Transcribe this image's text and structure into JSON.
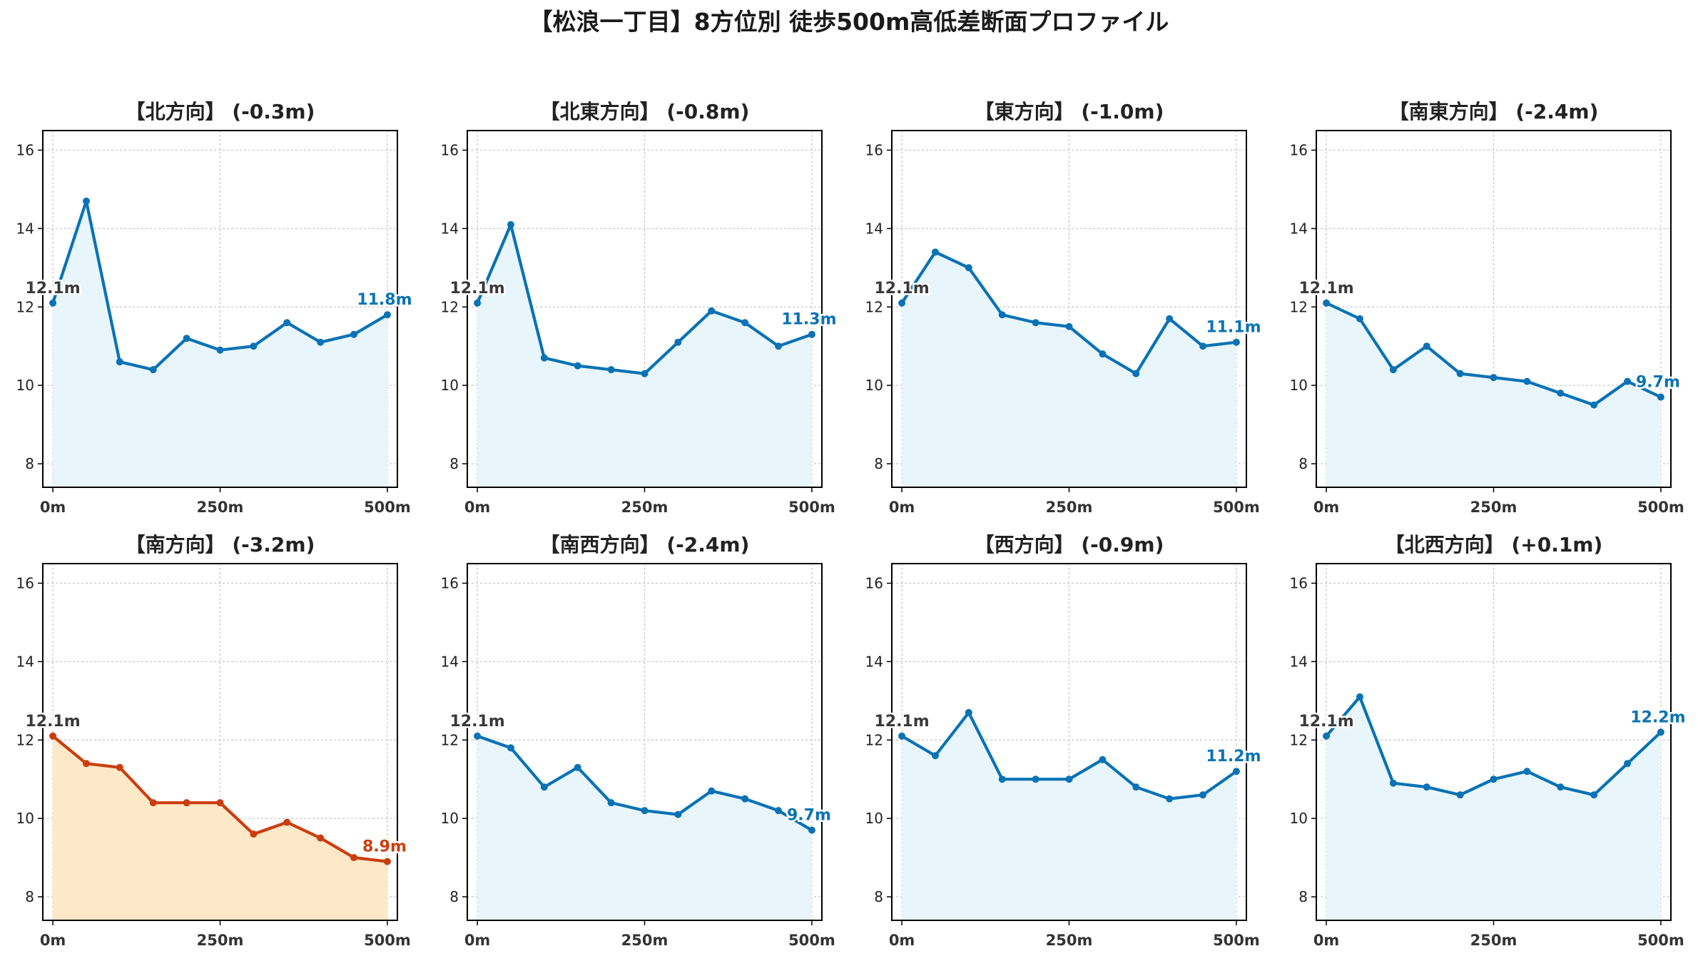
{
  "title": "【松浪一丁目】8方位別 徒歩500m高低差断面プロファイル",
  "colors": {
    "normal_line": "#0a72b5",
    "normal_fill": "#e8f6fb",
    "highlight_line": "#cc3d0e",
    "highlight_fill": "#fde8c8",
    "start_label": "#3a3a3a",
    "grid": "#c8c8c8"
  },
  "chart_data": [
    {
      "type": "line",
      "title": "【北方向】 (-0.3m)",
      "highlight": false,
      "x": [
        0,
        50,
        100,
        150,
        200,
        250,
        300,
        350,
        400,
        450,
        500
      ],
      "y": [
        12.1,
        14.7,
        10.6,
        10.4,
        11.2,
        10.9,
        11.0,
        11.6,
        11.1,
        11.3,
        11.8
      ],
      "start_label": "12.1m",
      "end_label": "11.8m",
      "xticks": [
        "0m",
        "250m",
        "500m"
      ],
      "yticks": [
        "8",
        "10",
        "12",
        "14",
        "16"
      ],
      "xlim": [
        -15,
        515
      ],
      "ylim": [
        7.4,
        16.5
      ],
      "grid": true
    },
    {
      "type": "line",
      "title": "【北東方向】 (-0.8m)",
      "highlight": false,
      "x": [
        0,
        50,
        100,
        150,
        200,
        250,
        300,
        350,
        400,
        450,
        500
      ],
      "y": [
        12.1,
        14.1,
        10.7,
        10.5,
        10.4,
        10.3,
        11.1,
        11.9,
        11.6,
        11.0,
        11.3
      ],
      "start_label": "12.1m",
      "end_label": "11.3m",
      "xticks": [
        "0m",
        "250m",
        "500m"
      ],
      "yticks": [
        "8",
        "10",
        "12",
        "14",
        "16"
      ],
      "xlim": [
        -15,
        515
      ],
      "ylim": [
        7.4,
        16.5
      ],
      "grid": true
    },
    {
      "type": "line",
      "title": "【東方向】 (-1.0m)",
      "highlight": false,
      "x": [
        0,
        50,
        100,
        150,
        200,
        250,
        300,
        350,
        400,
        450,
        500
      ],
      "y": [
        12.1,
        13.4,
        13.0,
        11.8,
        11.6,
        11.5,
        10.8,
        10.3,
        11.7,
        11.0,
        11.1
      ],
      "start_label": "12.1m",
      "end_label": "11.1m",
      "xticks": [
        "0m",
        "250m",
        "500m"
      ],
      "yticks": [
        "8",
        "10",
        "12",
        "14",
        "16"
      ],
      "xlim": [
        -15,
        515
      ],
      "ylim": [
        7.4,
        16.5
      ],
      "grid": true
    },
    {
      "type": "line",
      "title": "【南東方向】 (-2.4m)",
      "highlight": false,
      "x": [
        0,
        50,
        100,
        150,
        200,
        250,
        300,
        350,
        400,
        450,
        500
      ],
      "y": [
        12.1,
        11.7,
        10.4,
        11.0,
        10.3,
        10.2,
        10.1,
        9.8,
        9.5,
        10.1,
        9.7
      ],
      "start_label": "12.1m",
      "end_label": "9.7m",
      "xticks": [
        "0m",
        "250m",
        "500m"
      ],
      "yticks": [
        "8",
        "10",
        "12",
        "14",
        "16"
      ],
      "xlim": [
        -15,
        515
      ],
      "ylim": [
        7.4,
        16.5
      ],
      "grid": true
    },
    {
      "type": "line",
      "title": "【南方向】 (-3.2m)",
      "highlight": true,
      "x": [
        0,
        50,
        100,
        150,
        200,
        250,
        300,
        350,
        400,
        450,
        500
      ],
      "y": [
        12.1,
        11.4,
        11.3,
        10.4,
        10.4,
        10.4,
        9.6,
        9.9,
        9.5,
        9.0,
        8.9
      ],
      "start_label": "12.1m",
      "end_label": "8.9m",
      "xticks": [
        "0m",
        "250m",
        "500m"
      ],
      "yticks": [
        "8",
        "10",
        "12",
        "14",
        "16"
      ],
      "xlim": [
        -15,
        515
      ],
      "ylim": [
        7.4,
        16.5
      ],
      "grid": true
    },
    {
      "type": "line",
      "title": "【南西方向】 (-2.4m)",
      "highlight": false,
      "x": [
        0,
        50,
        100,
        150,
        200,
        250,
        300,
        350,
        400,
        450,
        500
      ],
      "y": [
        12.1,
        11.8,
        10.8,
        11.3,
        10.4,
        10.2,
        10.1,
        10.7,
        10.5,
        10.2,
        9.7
      ],
      "start_label": "12.1m",
      "end_label": "9.7m",
      "xticks": [
        "0m",
        "250m",
        "500m"
      ],
      "yticks": [
        "8",
        "10",
        "12",
        "14",
        "16"
      ],
      "xlim": [
        -15,
        515
      ],
      "ylim": [
        7.4,
        16.5
      ],
      "grid": true
    },
    {
      "type": "line",
      "title": "【西方向】 (-0.9m)",
      "highlight": false,
      "x": [
        0,
        50,
        100,
        150,
        200,
        250,
        300,
        350,
        400,
        450,
        500
      ],
      "y": [
        12.1,
        11.6,
        12.7,
        11.0,
        11.0,
        11.0,
        11.5,
        10.8,
        10.5,
        10.6,
        11.2
      ],
      "start_label": "12.1m",
      "end_label": "11.2m",
      "xticks": [
        "0m",
        "250m",
        "500m"
      ],
      "yticks": [
        "8",
        "10",
        "12",
        "14",
        "16"
      ],
      "xlim": [
        -15,
        515
      ],
      "ylim": [
        7.4,
        16.5
      ],
      "grid": true
    },
    {
      "type": "line",
      "title": "【北西方向】 (+0.1m)",
      "highlight": false,
      "x": [
        0,
        50,
        100,
        150,
        200,
        250,
        300,
        350,
        400,
        450,
        500
      ],
      "y": [
        12.1,
        13.1,
        10.9,
        10.8,
        10.6,
        11.0,
        11.2,
        10.8,
        10.6,
        11.4,
        12.2
      ],
      "start_label": "12.1m",
      "end_label": "12.2m",
      "xticks": [
        "0m",
        "250m",
        "500m"
      ],
      "yticks": [
        "8",
        "10",
        "12",
        "14",
        "16"
      ],
      "xlim": [
        -15,
        515
      ],
      "ylim": [
        7.4,
        16.5
      ],
      "grid": true
    }
  ]
}
